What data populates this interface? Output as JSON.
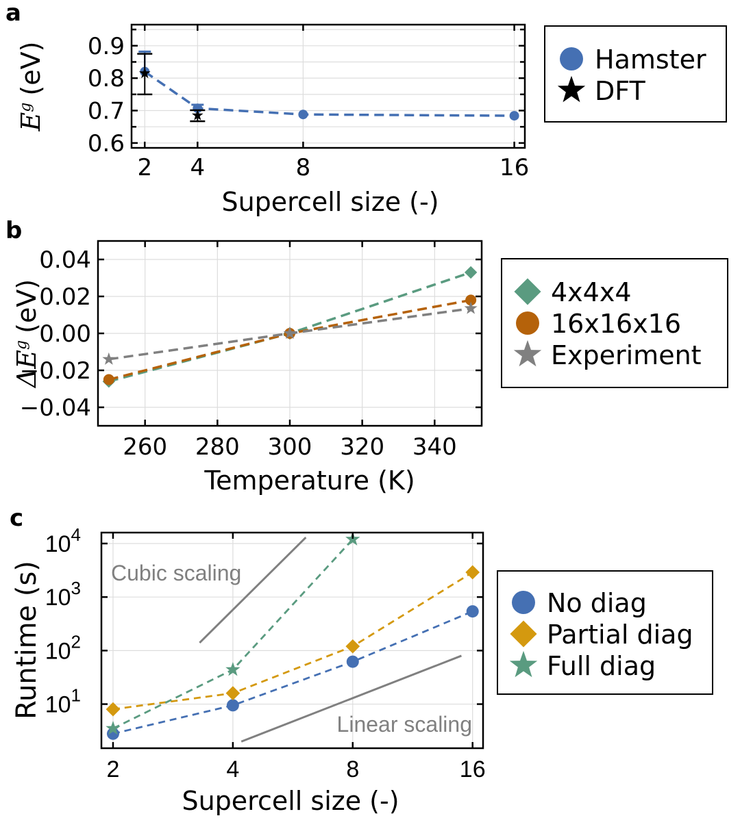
{
  "colors": {
    "blue": "#4570b3",
    "black": "#000000",
    "green": "#5a9b80",
    "orange": "#b5620a",
    "gray": "#808080",
    "gold": "#d4990f",
    "ref_line": "#808080"
  },
  "chart_data": [
    {
      "panel": "a",
      "type": "line",
      "panel_label": "a",
      "title": "",
      "xlabel": "Supercell size (-)",
      "ylabel_main": "E",
      "ylabel_sub": "g",
      "ylabel_unit": "(eV)",
      "x_ticks": [
        2,
        4,
        8,
        16
      ],
      "x_tick_labels": [
        "2",
        "4",
        "8",
        "16"
      ],
      "y_ticks": [
        0.6,
        0.7,
        0.8,
        0.9
      ],
      "y_tick_labels": [
        "0.6",
        "0.7",
        "0.8",
        "0.9"
      ],
      "xlim": [
        1.5,
        16.4
      ],
      "ylim": [
        0.585,
        0.965
      ],
      "grid": true,
      "legend_position": "right",
      "series": [
        {
          "name": "Hamster",
          "marker": "circle",
          "color": "#4570b3",
          "line": "dashed",
          "x": [
            2,
            4,
            8,
            16
          ],
          "y": [
            0.82,
            0.707,
            0.688,
            0.684
          ],
          "yerr_upper": [
            0.882,
            0.718,
            null,
            null
          ]
        },
        {
          "name": "DFT",
          "marker": "star",
          "color": "#000000",
          "line": "none",
          "x": [
            2,
            4
          ],
          "y": [
            0.815,
            0.685
          ],
          "yerr_low": [
            0.75,
            0.667
          ],
          "yerr_high": [
            0.875,
            0.701
          ]
        }
      ]
    },
    {
      "panel": "b",
      "type": "line",
      "panel_label": "b",
      "title": "",
      "xlabel": "Temperature (K)",
      "ylabel_main": "ΔE",
      "ylabel_sub": "g",
      "ylabel_unit": "(eV)",
      "x_ticks": [
        260,
        280,
        300,
        320,
        340
      ],
      "x_tick_labels": [
        "260",
        "280",
        "300",
        "320",
        "340"
      ],
      "y_ticks": [
        -0.04,
        -0.02,
        0.0,
        0.02,
        0.04
      ],
      "y_tick_labels": [
        "−0.04",
        "−0.02",
        "0.00",
        "0.02",
        "0.04"
      ],
      "xlim": [
        247,
        353
      ],
      "ylim": [
        -0.05,
        0.05
      ],
      "grid": true,
      "legend_position": "right",
      "series": [
        {
          "name": "4x4x4",
          "marker": "diamond",
          "color": "#5a9b80",
          "x": [
            250,
            300,
            350
          ],
          "y": [
            -0.026,
            0.0,
            0.033
          ]
        },
        {
          "name": "16x16x16",
          "marker": "circle",
          "color": "#b5620a",
          "x": [
            250,
            300,
            350
          ],
          "y": [
            -0.025,
            0.0,
            0.018
          ]
        },
        {
          "name": "Experiment",
          "marker": "star",
          "color": "#808080",
          "x": [
            250,
            300,
            350
          ],
          "y": [
            -0.014,
            0.0,
            0.0135
          ]
        }
      ]
    },
    {
      "panel": "c",
      "type": "line",
      "panel_label": "c",
      "title": "",
      "xlabel": "Supercell size (-)",
      "ylabel": "Runtime (s)",
      "xscale": "log2",
      "yscale": "log10",
      "x_ticks": [
        2,
        4,
        8,
        16
      ],
      "x_tick_labels": [
        "2",
        "4",
        "8",
        "16"
      ],
      "y_ticks": [
        10,
        100,
        1000,
        10000
      ],
      "y_tick_labels": [
        {
          "base": "10",
          "exp": "1"
        },
        {
          "base": "10",
          "exp": "2"
        },
        {
          "base": "10",
          "exp": "3"
        },
        {
          "base": "10",
          "exp": "4"
        }
      ],
      "xlim": [
        1.87,
        17.0
      ],
      "ylim": [
        1.5,
        16000
      ],
      "grid": true,
      "legend_position": "right",
      "series": [
        {
          "name": "No diag",
          "marker": "circle",
          "color": "#4570b3",
          "x": [
            2,
            4,
            8,
            16
          ],
          "y": [
            2.8,
            9.5,
            62,
            540
          ]
        },
        {
          "name": "Partial diag",
          "marker": "diamond",
          "color": "#d4990f",
          "x": [
            2,
            4,
            8,
            16
          ],
          "y": [
            8,
            16,
            120,
            2900
          ]
        },
        {
          "name": "Full diag",
          "marker": "star",
          "color": "#5a9b80",
          "x": [
            2,
            4,
            8
          ],
          "y": [
            3.5,
            44,
            12000
          ]
        }
      ],
      "reference_lines": [
        {
          "name": "Cubic scaling",
          "x": [
            3.3,
            6.1
          ],
          "y": [
            140,
            13000
          ]
        },
        {
          "name": "Linear scaling",
          "x": [
            4.2,
            15.0
          ],
          "y": [
            2.0,
            80
          ]
        }
      ],
      "annotations": [
        {
          "text": "Cubic scaling",
          "color": "#808080",
          "position": "top-left"
        },
        {
          "text": "Linear scaling",
          "color": "#808080",
          "position": "bottom-right"
        }
      ]
    }
  ]
}
